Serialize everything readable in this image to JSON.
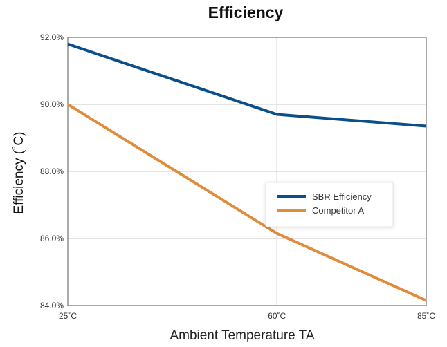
{
  "chart_data": {
    "type": "line",
    "title": "Efficiency",
    "xlabel": "Ambient Temperature TA",
    "ylabel": "Efficiency (˚C)",
    "x": [
      25,
      60,
      85
    ],
    "x_tick_labels": [
      "25˚C",
      "60˚C",
      "85˚C"
    ],
    "ylim": [
      84,
      92
    ],
    "y_ticks": [
      84,
      86,
      88,
      90,
      92
    ],
    "y_tick_labels": [
      "84.0%",
      "86.0%",
      "88.0%",
      "90.0%",
      "92.0%"
    ],
    "grid": true,
    "legend_position": "right",
    "series": [
      {
        "name": "SBR Efficiency",
        "color": "#0b4f8a",
        "values": [
          91.8,
          89.7,
          89.35
        ]
      },
      {
        "name": "Competitor A",
        "color": "#e08c3a",
        "values": [
          90.0,
          86.15,
          84.15
        ]
      }
    ]
  }
}
